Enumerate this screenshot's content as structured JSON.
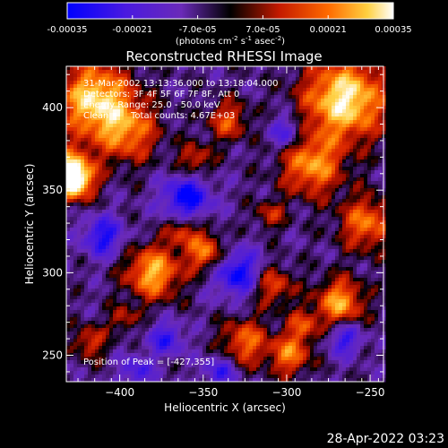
{
  "chart_data": {
    "type": "heatmap",
    "title": "Reconstructed RHESSI Image",
    "xlabel": "Heliocentric X (arcsec)",
    "ylabel": "Heliocentric Y (arcsec)",
    "xlim": [
      -432,
      -242
    ],
    "ylim": [
      234,
      425
    ],
    "xticks": [
      -400,
      -350,
      -300,
      -250
    ],
    "yticks": [
      250,
      300,
      350,
      400
    ],
    "colorbar": {
      "min": -0.00035,
      "max": 0.00035,
      "tick_values": [
        -0.00035,
        -0.00021,
        -7e-05,
        7e-05,
        0.00021,
        0.00035
      ],
      "tick_labels": [
        "-0.00035",
        "-0.00021",
        "-7.0e-05",
        "7.0e-05",
        "0.00021",
        "0.00035"
      ],
      "label_parts": [
        "(photons cm",
        "-2",
        " s",
        "-1",
        " asec",
        "-2",
        ")"
      ]
    },
    "annotations": [
      "31-Mar-2002 13:13:36.000 to 13:18:04.000",
      "Detectors: 3F 4F 5F 6F 7F 8F, Att 0",
      "Energy Range: 25.0 - 50.0 keV",
      "Clean",
      "Total counts: 4.67E+03",
      "Position of Peak = [-427,355]"
    ],
    "peak": [
      -427,
      355
    ],
    "colors": {
      "scale": [
        "#0000ff",
        "#4a1ae0",
        "#6a2ab8",
        "#000000",
        "#c41a00",
        "#ff6a00",
        "#ffd040",
        "#ffffff"
      ]
    }
  },
  "timestamp": "28-Apr-2022 03:23"
}
